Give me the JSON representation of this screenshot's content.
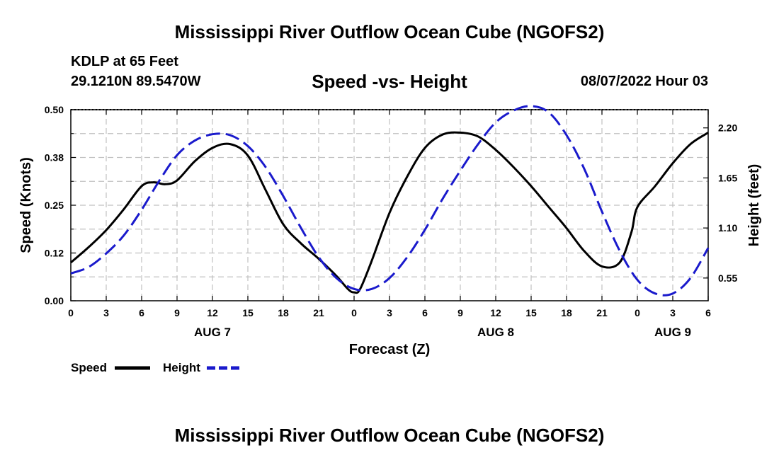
{
  "header": {
    "title": "Mississippi River Outflow Ocean Cube (NGOFS2)",
    "station": "KDLP at 65 Feet",
    "coords": "29.1210N  89.5470W",
    "subtitle": "Speed -vs- Height",
    "datetime": "08/07/2022 Hour 03"
  },
  "footer": {
    "title": "Mississippi River Outflow Ocean Cube (NGOFS2)"
  },
  "colors": {
    "speed": "#000000",
    "height": "#1a1acc",
    "grid": "#c0c0c0"
  },
  "chart_data": {
    "type": "line",
    "title": "Speed -vs- Height",
    "xlabel": "Forecast (Z)",
    "ylabel": "Speed (Knots)",
    "y2label": "Height (feet)",
    "xlim": [
      0,
      54
    ],
    "ylim": [
      0,
      0.5
    ],
    "y2lim": [
      0.3,
      2.4
    ],
    "xticks": [
      0,
      3,
      6,
      9,
      12,
      15,
      18,
      21,
      24,
      27,
      30,
      33,
      36,
      39,
      42,
      45,
      48,
      51,
      54
    ],
    "xtick_labels": [
      "0",
      "3",
      "6",
      "9",
      "12",
      "15",
      "18",
      "21",
      "0",
      "3",
      "6",
      "9",
      "12",
      "15",
      "18",
      "21",
      "0",
      "3",
      "6"
    ],
    "yticks": [
      0,
      0.125,
      0.25,
      0.375,
      0.5
    ],
    "ytick_labels": [
      "0.00",
      "0.12",
      "0.25",
      "0.38",
      "0.50"
    ],
    "y2ticks": [
      0.55,
      1.1,
      1.65,
      2.2
    ],
    "y2tick_labels": [
      "0.55",
      "1.10",
      "1.65",
      "2.20"
    ],
    "day_labels": [
      {
        "x": 12,
        "label": "AUG 7"
      },
      {
        "x": 36,
        "label": "AUG 8"
      },
      {
        "x": 51,
        "label": "AUG 9"
      }
    ],
    "grid": true,
    "series": [
      {
        "name": "Speed",
        "axis": "left",
        "style": "solid",
        "x": [
          0,
          1.5,
          3,
          4.5,
          6,
          7,
          8,
          9,
          10.5,
          12,
          13.5,
          15,
          16.5,
          18,
          19.5,
          21,
          22.5,
          23.5,
          24,
          24.5,
          25.5,
          27,
          28.5,
          30,
          31.5,
          33,
          34.5,
          36,
          37.5,
          39,
          40.5,
          42,
          43.5,
          45,
          46.5,
          47.5,
          48,
          49.5,
          51,
          52.5,
          54
        ],
        "values": [
          0.1,
          0.14,
          0.185,
          0.24,
          0.3,
          0.31,
          0.305,
          0.315,
          0.365,
          0.4,
          0.41,
          0.38,
          0.29,
          0.2,
          0.15,
          0.11,
          0.065,
          0.03,
          0.022,
          0.03,
          0.105,
          0.23,
          0.325,
          0.4,
          0.435,
          0.44,
          0.43,
          0.395,
          0.35,
          0.3,
          0.245,
          0.19,
          0.13,
          0.09,
          0.1,
          0.18,
          0.245,
          0.3,
          0.36,
          0.41,
          0.44
        ]
      },
      {
        "name": "Height",
        "axis": "right",
        "style": "dashed",
        "x": [
          0,
          1.5,
          3,
          4.5,
          6,
          7.5,
          9,
          10.5,
          12,
          13.5,
          15,
          16.5,
          18,
          19.5,
          21,
          22.5,
          24,
          25.5,
          27,
          28.5,
          30,
          31.5,
          33,
          34.5,
          36,
          37.5,
          39,
          40.5,
          42,
          43.5,
          45,
          46.5,
          48,
          49.5,
          51,
          52.5,
          54
        ],
        "values": [
          0.6,
          0.67,
          0.82,
          1.02,
          1.3,
          1.62,
          1.9,
          2.06,
          2.13,
          2.12,
          2.0,
          1.77,
          1.45,
          1.1,
          0.78,
          0.55,
          0.43,
          0.43,
          0.55,
          0.78,
          1.08,
          1.42,
          1.73,
          2.02,
          2.26,
          2.39,
          2.44,
          2.37,
          2.12,
          1.75,
          1.28,
          0.85,
          0.53,
          0.38,
          0.38,
          0.55,
          0.88
        ]
      }
    ],
    "legend": [
      {
        "label": "Speed",
        "style": "solid"
      },
      {
        "label": "Height",
        "style": "dashed"
      }
    ],
    "legend_position": "bottom-left"
  }
}
